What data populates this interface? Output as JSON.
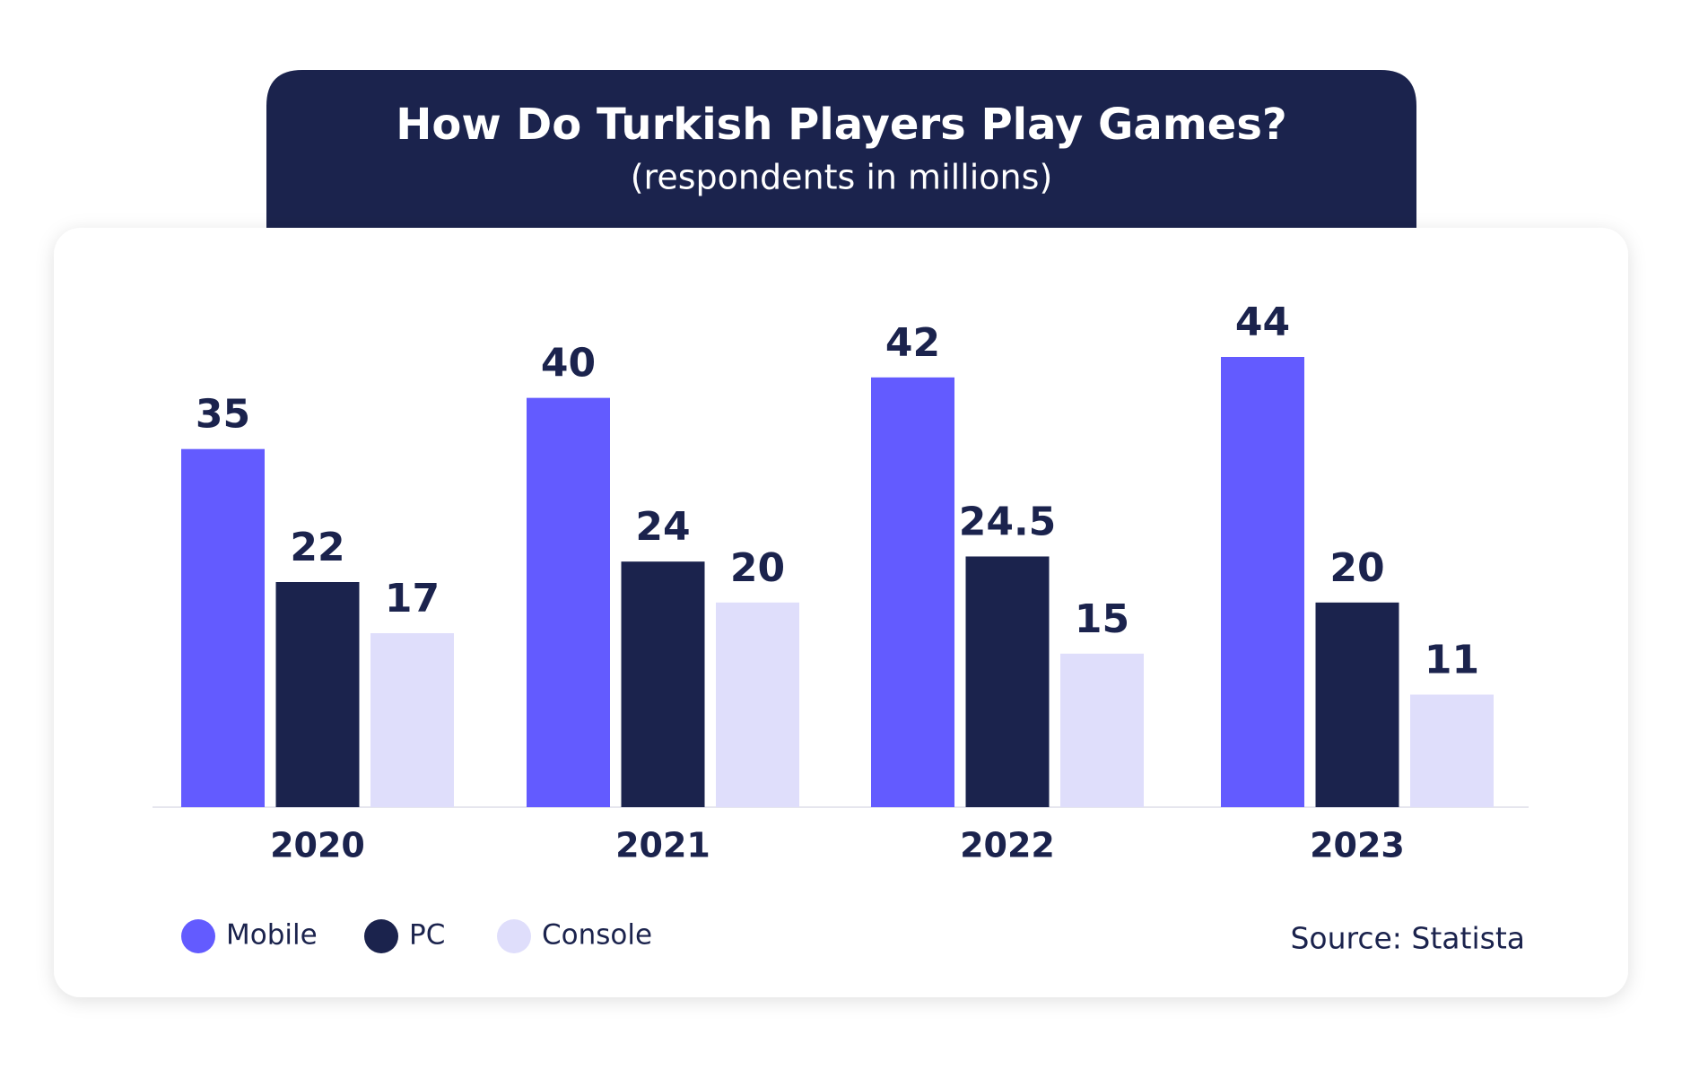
{
  "chart_data": {
    "type": "bar",
    "title": "How Do Turkish Players Play Games?",
    "subtitle": "(respondents in millions)",
    "categories": [
      "2020",
      "2021",
      "2022",
      "2023"
    ],
    "series": [
      {
        "name": "Mobile",
        "color": "#635bff",
        "values": [
          35,
          40,
          42,
          44
        ]
      },
      {
        "name": "PC",
        "color": "#1b234d",
        "values": [
          22,
          24,
          24.5,
          20
        ]
      },
      {
        "name": "Console",
        "color": "#dfdefb",
        "values": [
          17,
          20,
          15,
          11
        ]
      }
    ],
    "source": "Source: Statista"
  }
}
